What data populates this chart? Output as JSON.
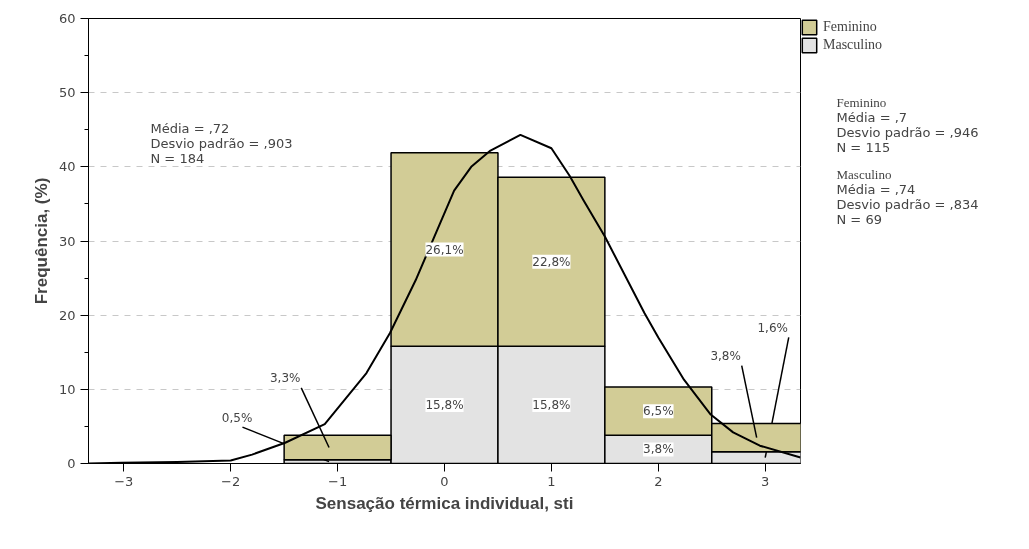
{
  "chart_data": {
    "type": "bar",
    "stacked": true,
    "xlabel": "Sensação térmica individual, sti",
    "ylabel": "Frequência, (%)",
    "x": [
      -1,
      0,
      1,
      2,
      3
    ],
    "xlim": [
      -3.33,
      3.33
    ],
    "xticks": [
      -3,
      -2,
      -1,
      0,
      1,
      2,
      3
    ],
    "ylim": [
      0,
      60
    ],
    "yticks": [
      0,
      10,
      20,
      30,
      40,
      50,
      60
    ],
    "grid": "y",
    "legend": "top right",
    "series": [
      {
        "name": "Masculino",
        "color": "#e3e3e3",
        "values": [
          0.5,
          15.8,
          15.8,
          3.8,
          1.6
        ],
        "value_labels": [
          "0,5%",
          "15,8%",
          "15,8%",
          "3,8%",
          "1,6%"
        ]
      },
      {
        "name": "Feminino",
        "color": "#d2cc96",
        "values": [
          3.3,
          26.1,
          22.8,
          6.5,
          3.8
        ],
        "value_labels": [
          "3,3%",
          "26,1%",
          "22,8%",
          "6,5%",
          "3,8%"
        ]
      },
      {
        "type": "line",
        "color": "#000000",
        "x": [
          -3.33,
          -3.02,
          -2.5,
          -2.0,
          -1.8,
          -1.49,
          -1.12,
          -0.73,
          -0.51,
          -0.27,
          0.09,
          0.25,
          0.43,
          0.71,
          1.0,
          1.17,
          1.3,
          1.5,
          1.87,
          2.0,
          2.24,
          2.49,
          2.7,
          2.95,
          3.33
        ],
        "values": [
          0,
          0.1,
          0.2,
          0.4,
          1.2,
          2.8,
          5.3,
          12.2,
          17.6,
          24.7,
          36.8,
          40.0,
          42.2,
          44.3,
          42.5,
          38.8,
          35.5,
          30.6,
          20.3,
          17.0,
          11.3,
          6.6,
          4.2,
          2.4,
          0.8
        ]
      }
    ],
    "annotations": [
      "Média = ,72",
      "Desvio padrão = ,903",
      "N = 184",
      "Feminino",
      "Média = ,7",
      "Desvio padrão = ,946",
      "N = 115",
      "Masculino",
      "Média = ,74",
      "Desvio padrão = ,834",
      "N = 69"
    ]
  }
}
